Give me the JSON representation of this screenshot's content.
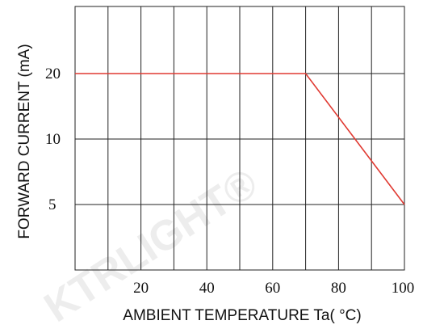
{
  "chart_data": {
    "type": "line",
    "xlabel": "AMBIENT TEMPERATURE Ta( °C)",
    "ylabel": "FORWARD CURRENT (mA)",
    "xlim": [
      0,
      100
    ],
    "x_ticks": [
      20,
      40,
      60,
      80,
      100
    ],
    "y_ticks": [
      {
        "label": "20",
        "value": 20
      },
      {
        "label": "10",
        "value": 10
      },
      {
        "label": "5",
        "value": 5
      }
    ],
    "grid": true,
    "series": [
      {
        "color": "#e03a32",
        "points": [
          {
            "x": 0,
            "y": 20
          },
          {
            "x": 70,
            "y": 20
          },
          {
            "x": 100,
            "y": 5
          }
        ]
      }
    ]
  },
  "watermark": "KTRLIGHT®"
}
